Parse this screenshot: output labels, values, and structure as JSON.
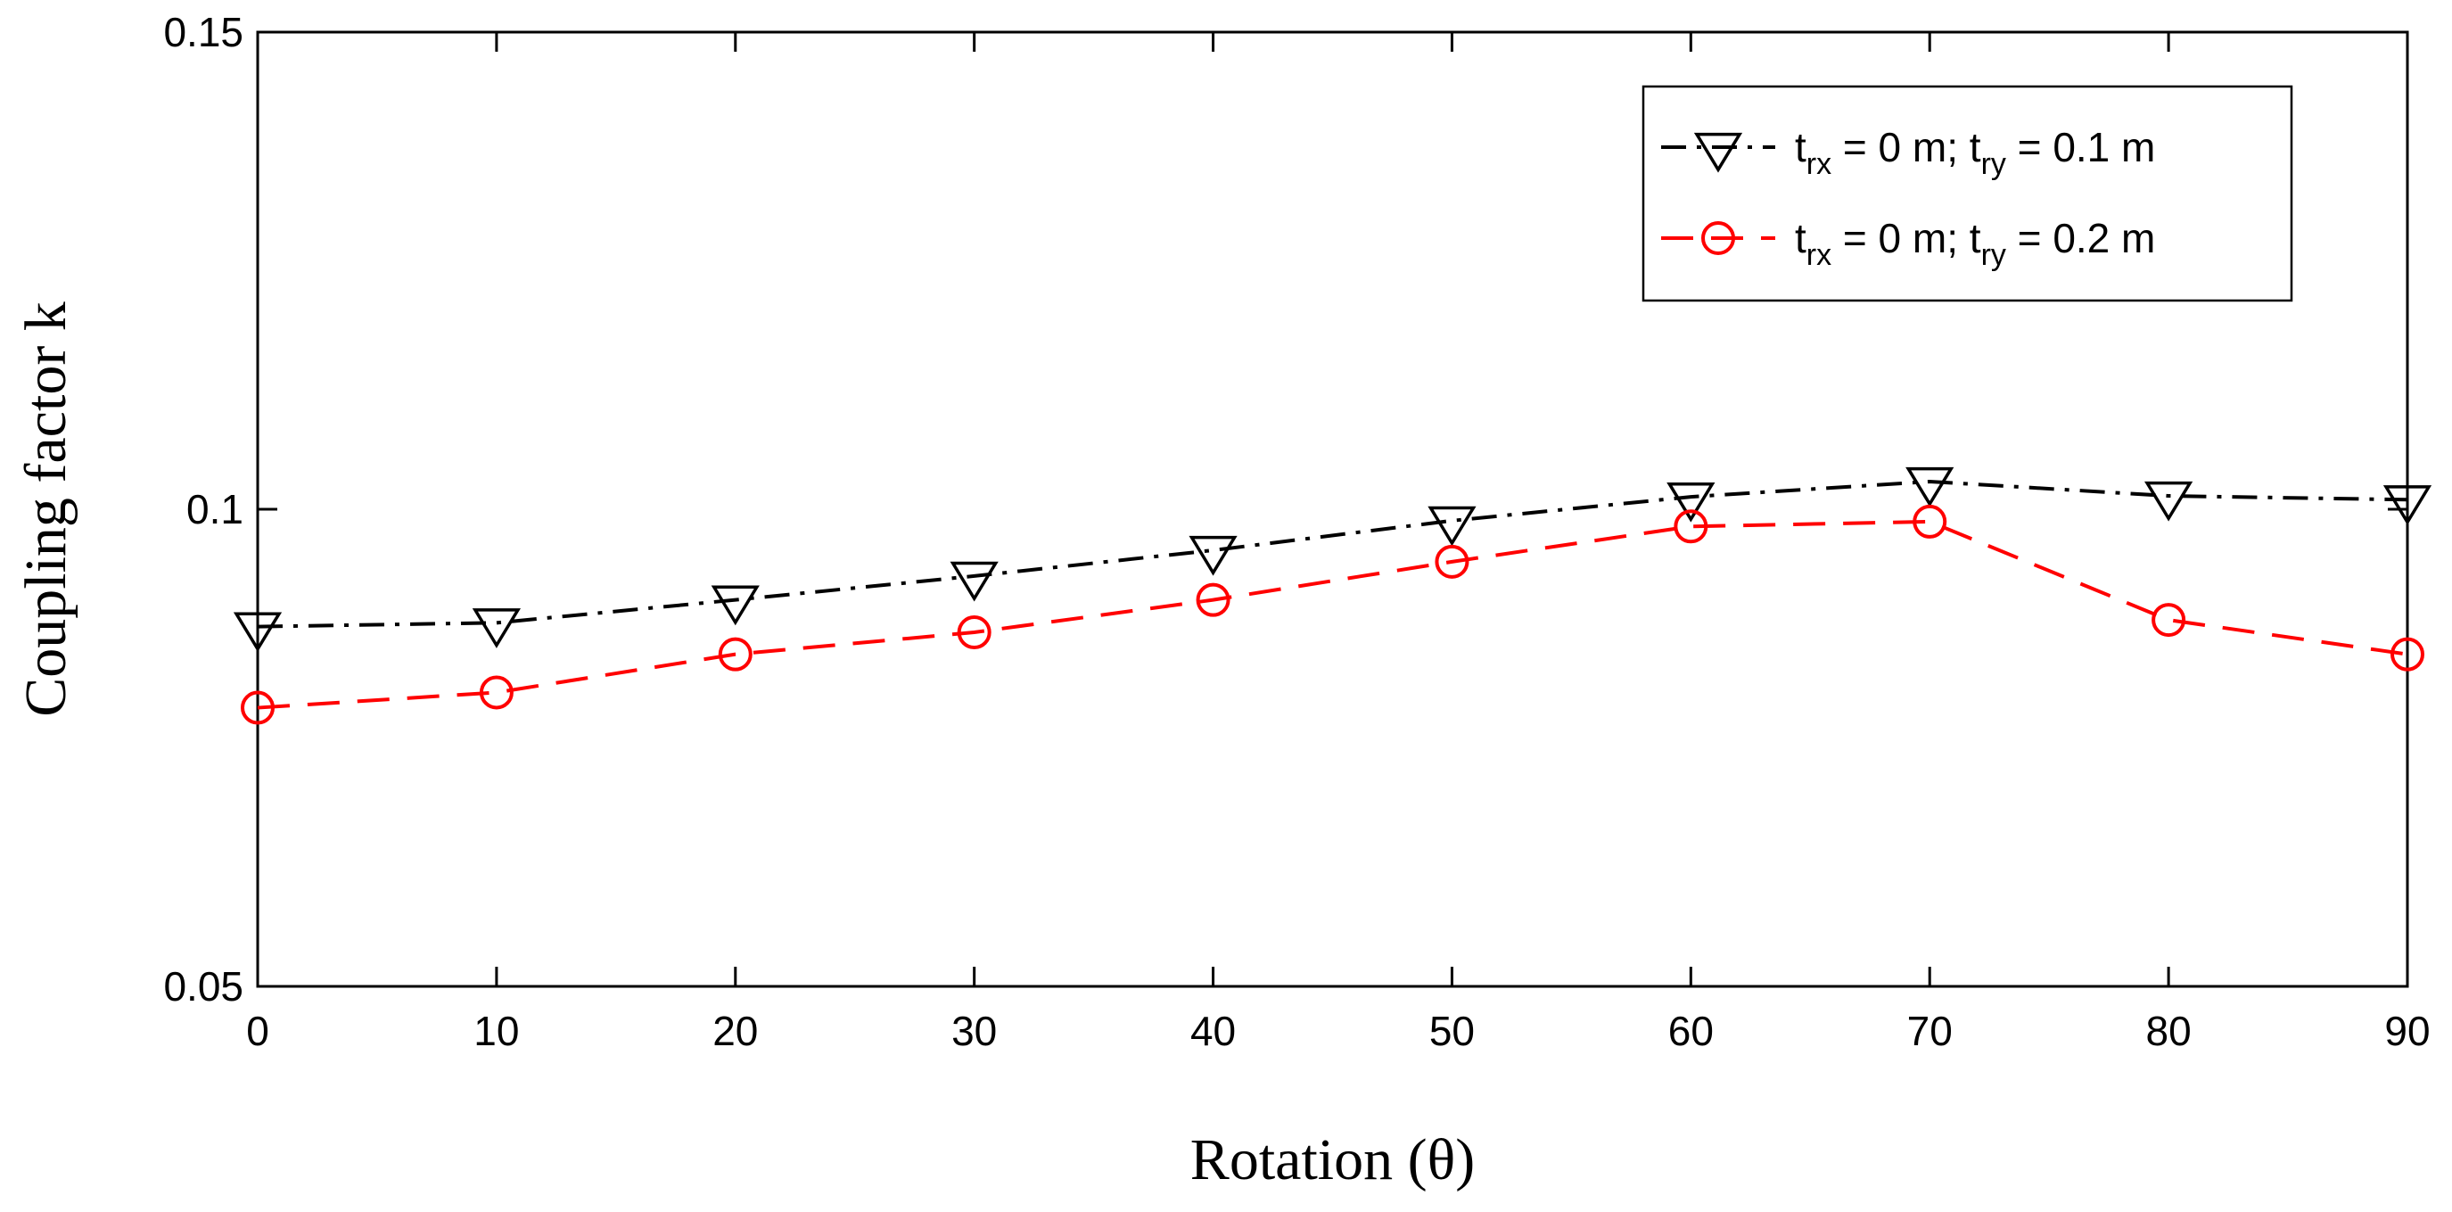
{
  "chart_data": {
    "type": "line",
    "title": "",
    "xlabel": "Rotation (θ)",
    "ylabel": "Coupling factor k",
    "x": [
      0,
      10,
      20,
      30,
      40,
      50,
      60,
      70,
      80,
      90
    ],
    "xlim": [
      0,
      90
    ],
    "ylim": [
      0.05,
      0.15
    ],
    "xticks": [
      "0",
      "10",
      "20",
      "30",
      "40",
      "50",
      "60",
      "70",
      "80",
      "90"
    ],
    "yticks": [
      "0.05",
      "0.1",
      "0.15"
    ],
    "grid": false,
    "legend_position": "top-right",
    "series": [
      {
        "name": "t_rx = 0 m; t_ry = 0.1 m",
        "legend_parts": [
          "t",
          "rx",
          " = 0 m; t",
          "ry",
          " = 0.1 m"
        ],
        "color": "#000000",
        "marker": "down-triangle",
        "line_style": "dash-dot",
        "values": [
          0.0877,
          0.0881,
          0.0905,
          0.093,
          0.0957,
          0.0988,
          0.1013,
          0.1029,
          0.1014,
          0.101
        ]
      },
      {
        "name": "t_rx = 0 m; t_ry = 0.2 m",
        "legend_parts": [
          "t",
          "rx",
          " = 0 m; t",
          "ry",
          " = 0.2 m"
        ],
        "color": "#ff0000",
        "marker": "circle",
        "line_style": "dashed",
        "values": [
          0.0792,
          0.0808,
          0.0848,
          0.0871,
          0.0905,
          0.0945,
          0.0982,
          0.0987,
          0.0884,
          0.0848
        ]
      }
    ]
  }
}
